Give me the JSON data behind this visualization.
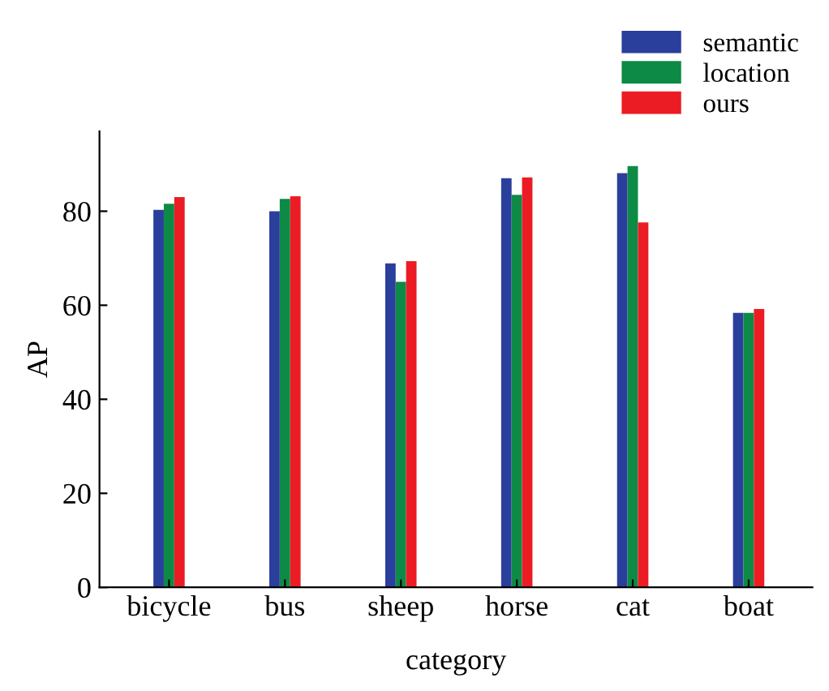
{
  "chart_data": {
    "type": "bar",
    "xlabel": "category",
    "ylabel": "AP",
    "categories": [
      "bicycle",
      "bus",
      "sheep",
      "horse",
      "cat",
      "boat"
    ],
    "series": [
      {
        "name": "semantic",
        "color": "#2a3f9c",
        "values": [
          80.3,
          80.0,
          68.9,
          87.0,
          88.1,
          58.4
        ]
      },
      {
        "name": "location",
        "color": "#0d8a45",
        "values": [
          81.6,
          82.6,
          65.0,
          83.5,
          89.6,
          58.4
        ]
      },
      {
        "name": "ours",
        "color": "#ec1c24",
        "values": [
          83.0,
          83.2,
          69.4,
          87.2,
          77.6,
          59.2
        ]
      }
    ],
    "ylim": [
      0,
      97
    ],
    "yticks": [
      0,
      20,
      40,
      60,
      80
    ],
    "grid": false,
    "legend": "top right"
  }
}
